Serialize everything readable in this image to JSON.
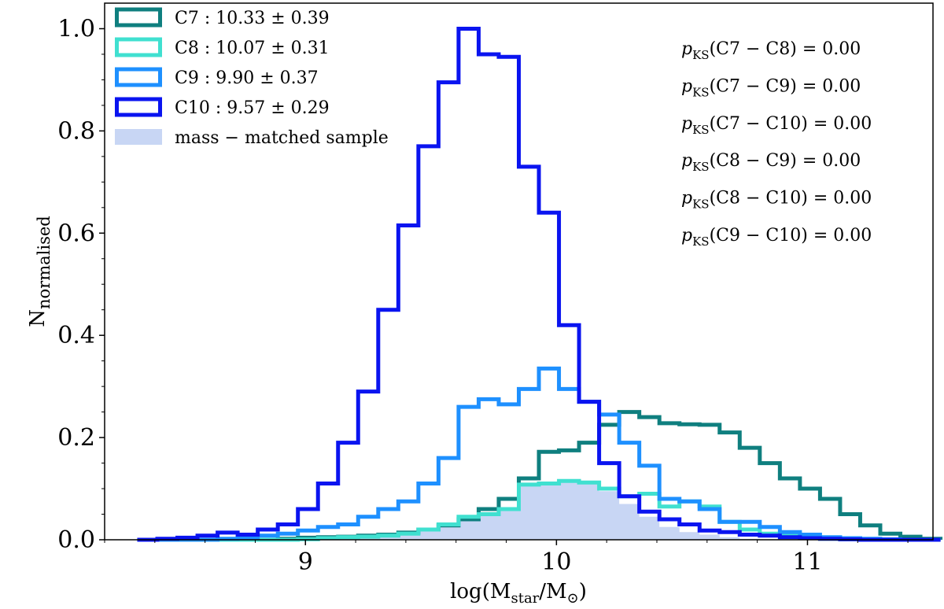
{
  "chart_data": {
    "type": "step-histogram",
    "xlabel": "log(M_star/M_⊙)",
    "ylabel": "N_normalised",
    "xlim": [
      8.2,
      11.5
    ],
    "ylim": [
      0.0,
      1.05
    ],
    "xticks": [
      9,
      10,
      11
    ],
    "yticks": [
      0.0,
      0.2,
      0.4,
      0.6,
      0.8,
      1.0
    ],
    "xtick_labels": [
      "9",
      "10",
      "11"
    ],
    "ytick_labels": [
      "0.0",
      "0.2",
      "0.4",
      "0.6",
      "0.8",
      "1.0"
    ],
    "grid": false,
    "legend_placement": "top-left",
    "bin_edges": [
      8.33,
      8.41,
      8.49,
      8.57,
      8.65,
      8.73,
      8.81,
      8.89,
      8.97,
      9.05,
      9.13,
      9.21,
      9.29,
      9.37,
      9.45,
      9.53,
      9.61,
      9.69,
      9.77,
      9.85,
      9.93,
      10.01,
      10.09,
      10.17,
      10.25,
      10.33,
      10.41,
      10.49,
      10.57,
      10.65,
      10.73,
      10.81,
      10.89,
      10.97,
      11.05,
      11.13,
      11.21,
      11.29,
      11.37,
      11.45,
      11.53
    ],
    "series": [
      {
        "key": "C7",
        "legend_name": "C7",
        "legend_value": "10.33 ± 0.39",
        "color": "#0f7f7f",
        "values": [
          0.0,
          0.0,
          0.0,
          0.0,
          0.0,
          0.0,
          0.0,
          0.002,
          0.004,
          0.005,
          0.006,
          0.008,
          0.01,
          0.014,
          0.02,
          0.028,
          0.04,
          0.06,
          0.08,
          0.12,
          0.172,
          0.175,
          0.19,
          0.225,
          0.25,
          0.24,
          0.228,
          0.226,
          0.225,
          0.21,
          0.18,
          0.15,
          0.12,
          0.1,
          0.08,
          0.05,
          0.028,
          0.012,
          0.006,
          0.002
        ]
      },
      {
        "key": "C8",
        "legend_name": "C8",
        "legend_value": "10.07 ± 0.31",
        "color": "#40e0d0",
        "values": [
          0.0,
          0.0,
          0.0,
          0.0,
          0.0,
          0.0,
          0.0,
          0.0,
          0.001,
          0.003,
          0.005,
          0.006,
          0.008,
          0.012,
          0.02,
          0.03,
          0.045,
          0.05,
          0.06,
          0.108,
          0.11,
          0.115,
          0.112,
          0.1,
          0.085,
          0.09,
          0.065,
          0.075,
          0.065,
          0.035,
          0.02,
          0.012,
          0.008,
          0.004,
          0.002,
          0.001,
          0.0,
          0.0,
          0.0,
          0.0
        ]
      },
      {
        "key": "C9",
        "legend_name": "C9",
        "legend_value": "9.90 ± 0.37",
        "color": "#1e90ff",
        "values": [
          0.0,
          0.0,
          0.0,
          0.0,
          0.002,
          0.004,
          0.008,
          0.012,
          0.018,
          0.025,
          0.03,
          0.045,
          0.06,
          0.075,
          0.11,
          0.16,
          0.26,
          0.275,
          0.265,
          0.295,
          0.335,
          0.295,
          0.27,
          0.245,
          0.19,
          0.145,
          0.08,
          0.075,
          0.06,
          0.035,
          0.035,
          0.025,
          0.015,
          0.01,
          0.005,
          0.003,
          0.002,
          0.001,
          0.0,
          0.0
        ]
      },
      {
        "key": "C10",
        "legend_name": "C10",
        "legend_value": "9.57 ± 0.29",
        "color": "#0a14f0",
        "values": [
          0.0,
          0.002,
          0.004,
          0.008,
          0.014,
          0.01,
          0.02,
          0.03,
          0.06,
          0.11,
          0.19,
          0.29,
          0.45,
          0.615,
          0.77,
          0.895,
          1.0,
          0.95,
          0.945,
          0.73,
          0.64,
          0.42,
          0.27,
          0.15,
          0.085,
          0.055,
          0.04,
          0.03,
          0.018,
          0.015,
          0.01,
          0.008,
          0.005,
          0.003,
          0.002,
          0.001,
          0.0,
          0.0,
          0.0,
          0.0
        ]
      }
    ],
    "filled_series": {
      "key": "mass-matched",
      "legend_name": "mass − matched sample",
      "color": "#c8d6f4",
      "values": [
        0.0,
        0.0,
        0.0,
        0.0,
        0.0,
        0.0,
        0.0,
        0.0,
        0.001,
        0.003,
        0.005,
        0.006,
        0.008,
        0.012,
        0.02,
        0.03,
        0.045,
        0.05,
        0.06,
        0.108,
        0.11,
        0.112,
        0.11,
        0.095,
        0.07,
        0.045,
        0.025,
        0.015,
        0.01,
        0.005,
        0.002,
        0.001,
        0.0,
        0.0,
        0.0,
        0.0,
        0.0,
        0.0,
        0.0,
        0.0
      ]
    },
    "annotations": [
      {
        "prefix": "p",
        "sub": "KS",
        "text": "(C7 − C8) = 0.00"
      },
      {
        "prefix": "p",
        "sub": "KS",
        "text": "(C7 − C9) = 0.00"
      },
      {
        "prefix": "p",
        "sub": "KS",
        "text": "(C7 − C10) = 0.00"
      },
      {
        "prefix": "p",
        "sub": "KS",
        "text": "(C8 − C9) = 0.00"
      },
      {
        "prefix": "p",
        "sub": "KS",
        "text": "(C8 − C10) = 0.00"
      },
      {
        "prefix": "p",
        "sub": "KS",
        "text": "(C9 − C10) = 0.00"
      }
    ]
  },
  "axis_titles": {
    "x_main": "log(M",
    "x_sub1": "star",
    "x_mid": "/M",
    "x_sub2": "⊙",
    "x_end": ")",
    "y_main": "N",
    "y_sub": "normalised"
  }
}
